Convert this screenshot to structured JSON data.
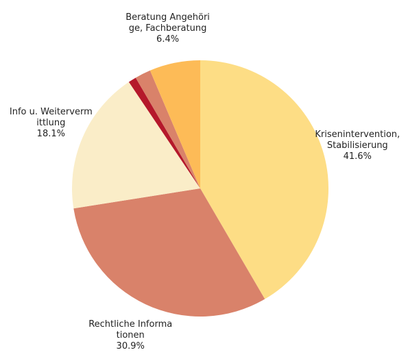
{
  "chart_data": {
    "type": "pie",
    "categories": [
      "Krisenintervention, Stabilisierung",
      "Rechtliche Informationen",
      "Info u. Weitervermittlung",
      null,
      null,
      "Beratung Angehörige, Fachberatung"
    ],
    "values": [
      41.6,
      30.9,
      18.1,
      1.0,
      2.0,
      6.4
    ],
    "value_labels": [
      "41.6%",
      "30.9%",
      "18.1%",
      null,
      null,
      "6.4%"
    ],
    "colors": [
      "#fddd85",
      "#d9826a",
      "#faedc8",
      "#b5192b",
      "#d9826a",
      "#fdbb57"
    ]
  }
}
